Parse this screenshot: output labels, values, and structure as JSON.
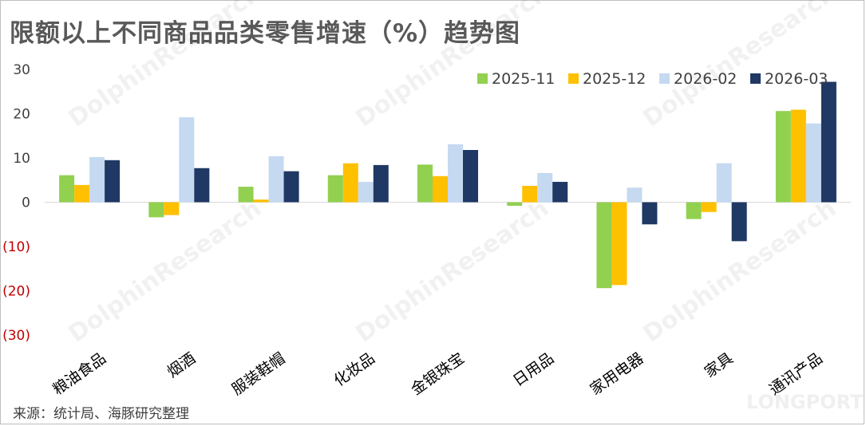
{
  "title": "限额以上不同商品品类零售增速（%）趋势图",
  "source": "来源：统计局、海豚研究整理",
  "watermark": "DolphinResearch",
  "brand": "LONGPORT",
  "chart_data": {
    "type": "bar",
    "categories": [
      "粮油食品",
      "烟酒",
      "服装鞋帽",
      "化妆品",
      "金银珠宝",
      "日用品",
      "家用电器",
      "家具",
      "通讯产品"
    ],
    "series": [
      {
        "name": "2025-11",
        "color": "#92d050",
        "values": [
          6.1,
          -3.4,
          3.5,
          6.1,
          8.5,
          -0.8,
          -19.4,
          -3.8,
          20.6
        ]
      },
      {
        "name": "2025-12",
        "color": "#ffc000",
        "values": [
          3.9,
          -2.9,
          0.6,
          8.8,
          5.9,
          3.7,
          -18.7,
          -2.2,
          20.9
        ]
      },
      {
        "name": "2026-02",
        "color": "#c5d9f1",
        "values": [
          10.2,
          19.2,
          10.4,
          4.6,
          13.1,
          6.6,
          3.3,
          8.8,
          17.8
        ]
      },
      {
        "name": "2026-03",
        "color": "#1f3864",
        "values": [
          9.5,
          7.7,
          7.0,
          8.4,
          11.8,
          4.6,
          -5.0,
          -8.8,
          27.2
        ]
      }
    ],
    "ylim": [
      -30,
      30
    ],
    "yticks": [
      {
        "value": 30,
        "label": "30"
      },
      {
        "value": 20,
        "label": "20"
      },
      {
        "value": 10,
        "label": "10"
      },
      {
        "value": 0,
        "label": "0"
      },
      {
        "value": -10,
        "label": "(10)"
      },
      {
        "value": -20,
        "label": "(20)"
      },
      {
        "value": -30,
        "label": "(30)"
      }
    ],
    "legend_position": "top-right",
    "grid": false
  }
}
